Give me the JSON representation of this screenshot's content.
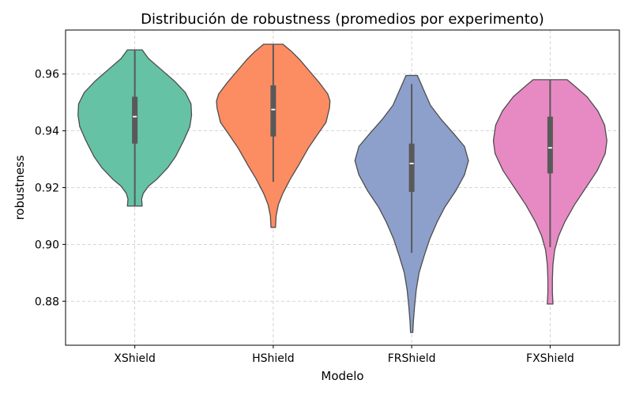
{
  "chart_data": {
    "type": "violin",
    "title": "Distribución de robustness (promedios por experimento)",
    "xlabel": "Modelo",
    "ylabel": "robustness",
    "categories": [
      "XShield",
      "HShield",
      "FRShield",
      "FXShield"
    ],
    "ylim": [
      0.8645,
      0.9755
    ],
    "yticks": [
      0.88,
      0.9,
      0.92,
      0.94,
      0.96
    ],
    "ytick_labels": [
      "0.88",
      "0.90",
      "0.92",
      "0.94",
      "0.96"
    ],
    "grid": true,
    "colors": [
      "#66c2a5",
      "#fc8d62",
      "#8da0cb",
      "#e78ac3"
    ],
    "violins": [
      {
        "name": "XShield",
        "min": 0.9135,
        "max": 0.9685,
        "q1": 0.9355,
        "median": 0.945,
        "q3": 0.952,
        "whisker_low": 0.9135,
        "whisker_high": 0.9685,
        "max_half_width_frac": 0.41,
        "profile": [
          [
            0.9135,
            0.13
          ],
          [
            0.916,
            0.12
          ],
          [
            0.918,
            0.15
          ],
          [
            0.9205,
            0.24
          ],
          [
            0.923,
            0.39
          ],
          [
            0.927,
            0.58
          ],
          [
            0.931,
            0.72
          ],
          [
            0.9365,
            0.86
          ],
          [
            0.9415,
            0.97
          ],
          [
            0.9455,
            1.0
          ],
          [
            0.9495,
            0.99
          ],
          [
            0.9535,
            0.89
          ],
          [
            0.9575,
            0.7
          ],
          [
            0.9615,
            0.47
          ],
          [
            0.9655,
            0.24
          ],
          [
            0.9685,
            0.13
          ]
        ]
      },
      {
        "name": "HShield",
        "min": 0.906,
        "max": 0.9705,
        "q1": 0.938,
        "median": 0.9475,
        "q3": 0.956,
        "whisker_low": 0.922,
        "whisker_high": 0.9705,
        "max_half_width_frac": 0.41,
        "profile": [
          [
            0.906,
            0.04
          ],
          [
            0.91,
            0.05
          ],
          [
            0.914,
            0.09
          ],
          [
            0.918,
            0.17
          ],
          [
            0.923,
            0.3
          ],
          [
            0.928,
            0.45
          ],
          [
            0.934,
            0.62
          ],
          [
            0.939,
            0.79
          ],
          [
            0.943,
            0.93
          ],
          [
            0.948,
            0.99
          ],
          [
            0.9505,
            1.0
          ],
          [
            0.953,
            0.96
          ],
          [
            0.957,
            0.81
          ],
          [
            0.961,
            0.64
          ],
          [
            0.965,
            0.47
          ],
          [
            0.968,
            0.32
          ],
          [
            0.9705,
            0.17
          ]
        ]
      },
      {
        "name": "FRShield",
        "min": 0.869,
        "max": 0.9595,
        "q1": 0.9185,
        "median": 0.9285,
        "q3": 0.9355,
        "whisker_low": 0.897,
        "whisker_high": 0.9565,
        "max_half_width_frac": 0.41,
        "profile": [
          [
            0.869,
            0.02
          ],
          [
            0.873,
            0.03
          ],
          [
            0.878,
            0.05
          ],
          [
            0.884,
            0.08
          ],
          [
            0.89,
            0.13
          ],
          [
            0.896,
            0.22
          ],
          [
            0.902,
            0.32
          ],
          [
            0.908,
            0.45
          ],
          [
            0.913,
            0.58
          ],
          [
            0.919,
            0.78
          ],
          [
            0.9245,
            0.93
          ],
          [
            0.9295,
            1.0
          ],
          [
            0.9345,
            0.93
          ],
          [
            0.939,
            0.74
          ],
          [
            0.944,
            0.52
          ],
          [
            0.949,
            0.33
          ],
          [
            0.954,
            0.22
          ],
          [
            0.9595,
            0.1
          ]
        ]
      },
      {
        "name": "FXShield",
        "min": 0.879,
        "max": 0.958,
        "q1": 0.925,
        "median": 0.934,
        "q3": 0.945,
        "whisker_low": 0.899,
        "whisker_high": 0.958,
        "max_half_width_frac": 0.41,
        "profile": [
          [
            0.879,
            0.05
          ],
          [
            0.883,
            0.04
          ],
          [
            0.888,
            0.04
          ],
          [
            0.893,
            0.05
          ],
          [
            0.898,
            0.08
          ],
          [
            0.903,
            0.15
          ],
          [
            0.908,
            0.26
          ],
          [
            0.914,
            0.43
          ],
          [
            0.92,
            0.63
          ],
          [
            0.926,
            0.83
          ],
          [
            0.932,
            0.97
          ],
          [
            0.9365,
            1.0
          ],
          [
            0.942,
            0.96
          ],
          [
            0.947,
            0.84
          ],
          [
            0.952,
            0.65
          ],
          [
            0.956,
            0.42
          ],
          [
            0.958,
            0.3
          ]
        ]
      }
    ]
  }
}
